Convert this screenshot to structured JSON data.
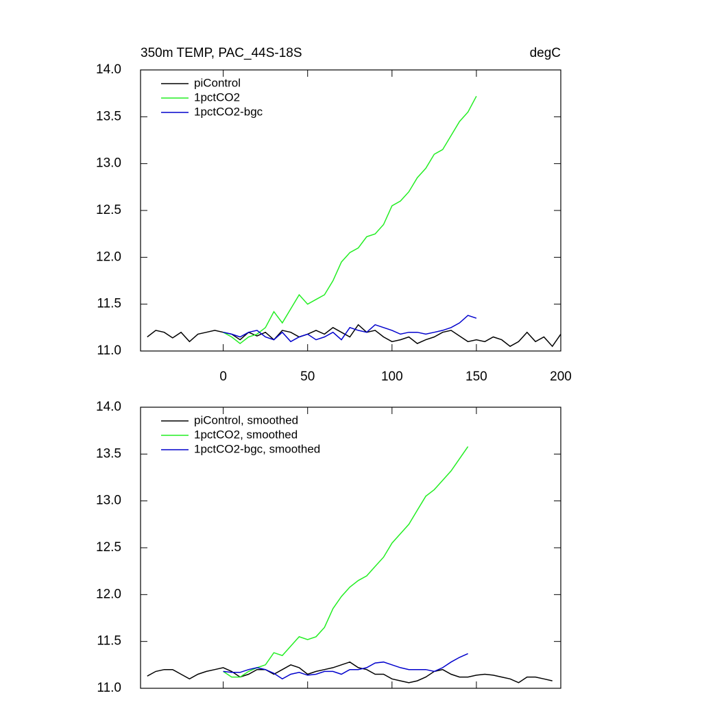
{
  "chart_data": [
    {
      "type": "line",
      "title": "350m TEMP, PAC_44S-18S",
      "units": "degC",
      "x": [
        -45,
        -40,
        -35,
        -30,
        -25,
        -20,
        -15,
        -10,
        -5,
        0,
        5,
        10,
        15,
        20,
        25,
        30,
        35,
        40,
        45,
        50,
        55,
        60,
        65,
        70,
        75,
        80,
        85,
        90,
        95,
        100,
        105,
        110,
        115,
        120,
        125,
        130,
        135,
        140,
        145,
        150,
        155,
        160,
        165,
        170,
        175,
        180,
        185,
        190,
        195,
        200
      ],
      "series": [
        {
          "name": "piControl",
          "color": "#000000",
          "values": [
            11.15,
            11.22,
            11.2,
            11.14,
            11.2,
            11.1,
            11.18,
            11.2,
            11.22,
            11.2,
            11.18,
            11.12,
            11.2,
            11.16,
            11.2,
            11.12,
            11.22,
            11.2,
            11.15,
            11.18,
            11.22,
            11.18,
            11.25,
            11.2,
            11.15,
            11.28,
            11.2,
            11.22,
            11.15,
            11.1,
            11.12,
            11.15,
            11.08,
            11.12,
            11.15,
            11.2,
            11.22,
            11.16,
            11.1,
            11.12,
            11.1,
            11.15,
            11.12,
            11.05,
            11.1,
            11.2,
            11.1,
            11.15,
            11.05,
            11.18
          ]
        },
        {
          "name": "1pctCO2",
          "color": "#22ee22",
          "values": [
            null,
            null,
            null,
            null,
            null,
            null,
            null,
            null,
            null,
            11.2,
            11.15,
            11.08,
            11.15,
            11.18,
            11.25,
            11.42,
            11.3,
            11.45,
            11.6,
            11.5,
            11.55,
            11.6,
            11.75,
            11.95,
            12.05,
            12.1,
            12.22,
            12.25,
            12.35,
            12.55,
            12.6,
            12.7,
            12.85,
            12.95,
            13.1,
            13.15,
            13.3,
            13.45,
            13.55,
            13.72,
            null,
            null,
            null,
            null,
            null,
            null,
            null,
            null,
            null,
            null
          ]
        },
        {
          "name": "1pctCO2-bgc",
          "color": "#0000cc",
          "values": [
            null,
            null,
            null,
            null,
            null,
            null,
            null,
            null,
            null,
            11.2,
            11.18,
            11.15,
            11.2,
            11.22,
            11.15,
            11.12,
            11.2,
            11.1,
            11.15,
            11.18,
            11.12,
            11.15,
            11.2,
            11.12,
            11.25,
            11.22,
            11.2,
            11.28,
            11.25,
            11.22,
            11.18,
            11.2,
            11.2,
            11.18,
            11.2,
            11.22,
            11.25,
            11.3,
            11.38,
            11.35,
            null,
            null,
            null,
            null,
            null,
            null,
            null,
            null,
            null,
            null
          ]
        }
      ],
      "xlim": [
        -49,
        200
      ],
      "xticks": [
        0,
        50,
        100,
        150,
        200
      ],
      "ylim": [
        11,
        14
      ],
      "yticks": [
        {
          "value": 11,
          "label": "11.0"
        },
        11.5,
        {
          "value": 12,
          "label": "12.0"
        },
        12.5,
        {
          "value": 13,
          "label": "13.0"
        },
        13.5,
        {
          "value": 14,
          "label": "14.0"
        }
      ],
      "legend": "upper left"
    },
    {
      "type": "line",
      "x": [
        -45,
        -40,
        -35,
        -30,
        -25,
        -20,
        -15,
        -10,
        -5,
        0,
        5,
        10,
        15,
        20,
        25,
        30,
        35,
        40,
        45,
        50,
        55,
        60,
        65,
        70,
        75,
        80,
        85,
        90,
        95,
        100,
        105,
        110,
        115,
        120,
        125,
        130,
        135,
        140,
        145,
        150,
        155,
        160,
        165,
        170,
        175,
        180,
        185,
        190,
        195,
        200
      ],
      "series": [
        {
          "name": "piControl, smoothed",
          "color": "#000000",
          "values": [
            11.13,
            11.18,
            11.2,
            11.2,
            11.15,
            11.1,
            11.15,
            11.18,
            11.2,
            11.22,
            11.18,
            11.12,
            11.15,
            11.2,
            11.2,
            11.15,
            11.2,
            11.25,
            11.22,
            11.15,
            11.18,
            11.2,
            11.22,
            11.25,
            11.28,
            11.22,
            11.2,
            11.15,
            11.15,
            11.1,
            11.08,
            11.06,
            11.08,
            11.12,
            11.18,
            11.2,
            11.15,
            11.12,
            11.12,
            11.14,
            11.15,
            11.14,
            11.12,
            11.1,
            11.06,
            11.12,
            11.12,
            11.1,
            11.08,
            null
          ]
        },
        {
          "name": "1pctCO2, smoothed",
          "color": "#22ee22",
          "values": [
            null,
            null,
            null,
            null,
            null,
            null,
            null,
            null,
            null,
            11.18,
            11.12,
            11.12,
            11.18,
            11.22,
            11.25,
            11.38,
            11.35,
            11.45,
            11.55,
            11.52,
            11.55,
            11.65,
            11.85,
            11.98,
            12.08,
            12.15,
            12.2,
            12.3,
            12.4,
            12.55,
            12.65,
            12.75,
            12.9,
            13.05,
            13.12,
            13.22,
            13.32,
            13.45,
            13.58,
            null,
            null,
            null,
            null,
            null,
            null,
            null,
            null,
            null,
            null,
            null
          ]
        },
        {
          "name": "1pctCO2-bgc, smoothed",
          "color": "#0000cc",
          "values": [
            null,
            null,
            null,
            null,
            null,
            null,
            null,
            null,
            null,
            11.18,
            11.17,
            11.17,
            11.2,
            11.22,
            11.2,
            11.16,
            11.1,
            11.15,
            11.17,
            11.14,
            11.15,
            11.18,
            11.18,
            11.15,
            11.2,
            11.2,
            11.22,
            11.27,
            11.28,
            11.25,
            11.22,
            11.2,
            11.2,
            11.2,
            11.18,
            11.22,
            11.28,
            11.33,
            11.37,
            null,
            null,
            null,
            null,
            null,
            null,
            null,
            null,
            null,
            null,
            null
          ]
        }
      ],
      "xlim": [
        -49,
        200
      ],
      "xticks": [
        0,
        50,
        100,
        150,
        200
      ],
      "ylim": [
        11,
        14
      ],
      "yticks": [
        {
          "value": 11,
          "label": "11.0"
        },
        11.5,
        {
          "value": 12,
          "label": "12.0"
        },
        12.5,
        {
          "value": 13,
          "label": "13.0"
        },
        13.5,
        {
          "value": 14,
          "label": "14.0"
        }
      ],
      "legend": "upper left"
    }
  ]
}
